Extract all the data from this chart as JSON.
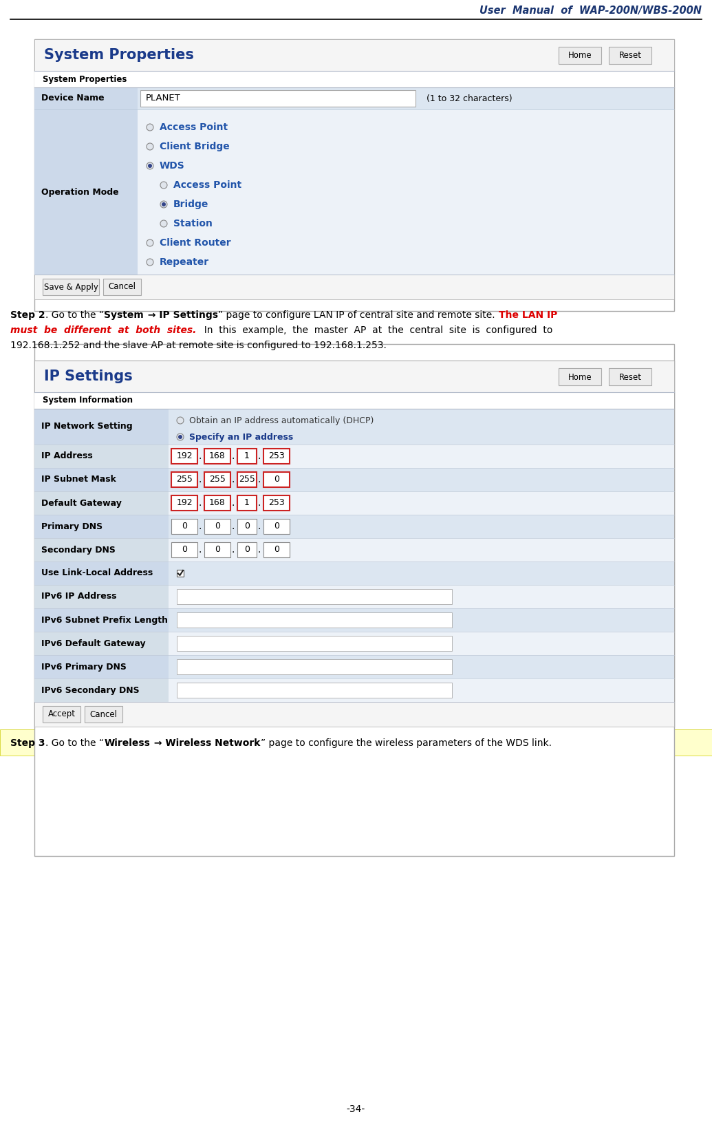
{
  "page_title": "User  Manual  of  WAP-200N/WBS-200N",
  "page_number": "-34-",
  "title_color": "#1a3a6b",
  "sp_title": "System Properties",
  "sp_subtitle": "System Properties",
  "sp_row1_label": "Device Name",
  "sp_row1_value": "PLANET",
  "sp_row1_hint": "(1 to 32 characters)",
  "sp_row2_label": "Operation Mode",
  "sp_modes": [
    {
      "label": "Access Point",
      "selected": false,
      "indent": 0,
      "color": "#2255aa"
    },
    {
      "label": "Client Bridge",
      "selected": false,
      "indent": 0,
      "color": "#2255aa"
    },
    {
      "label": "WDS",
      "selected": true,
      "indent": 0,
      "color": "#2255aa"
    },
    {
      "label": "Access Point",
      "selected": false,
      "indent": 1,
      "color": "#2255aa"
    },
    {
      "label": "Bridge",
      "selected": true,
      "indent": 1,
      "color": "#2255aa"
    },
    {
      "label": "Station",
      "selected": false,
      "indent": 1,
      "color": "#2255aa"
    },
    {
      "label": "Client Router",
      "selected": false,
      "indent": 0,
      "color": "#2255aa"
    },
    {
      "label": "Repeater",
      "selected": false,
      "indent": 0,
      "color": "#2255aa"
    }
  ],
  "ip_title": "IP Settings",
  "ip_subtitle": "System Information",
  "ip_rows": [
    {
      "label": "IP Network Setting",
      "type": "radio2",
      "options": [
        "Obtain an IP address automatically (DHCP)",
        "Specify an IP address"
      ],
      "selected": 1
    },
    {
      "label": "IP Address",
      "type": "ip_input",
      "values": [
        "192",
        "168",
        "1",
        "253"
      ],
      "highlight": true
    },
    {
      "label": "IP Subnet Mask",
      "type": "ip_input",
      "values": [
        "255",
        "255",
        "255",
        "0"
      ],
      "highlight": true
    },
    {
      "label": "Default Gateway",
      "type": "ip_input",
      "values": [
        "192",
        "168",
        "1",
        "253"
      ],
      "highlight": true
    },
    {
      "label": "Primary DNS",
      "type": "ip_input",
      "values": [
        "0",
        "0",
        "0",
        "0"
      ],
      "highlight": false
    },
    {
      "label": "Secondary DNS",
      "type": "ip_input",
      "values": [
        "0",
        "0",
        "0",
        "0"
      ],
      "highlight": false
    },
    {
      "label": "Use Link-Local Address",
      "type": "checkbox",
      "checked": true
    },
    {
      "label": "IPv6 IP Address",
      "type": "text_input",
      "value": ""
    },
    {
      "label": "IPv6 Subnet Prefix Length",
      "type": "text_input",
      "value": ""
    },
    {
      "label": "IPv6 Default Gateway",
      "type": "text_input",
      "value": ""
    },
    {
      "label": "IPv6 Primary DNS",
      "type": "text_input",
      "value": ""
    },
    {
      "label": "IPv6 Secondary DNS",
      "type": "text_input",
      "value": ""
    }
  ],
  "step2_line1_normal": ". Go to the “System → IP Settings” page to configure LAN IP of central site and remote site. ",
  "step2_line1_red": "The LAN IP",
  "step2_line2_red_bold_italic": "must  be  different  at  both  sites.",
  "step2_line2_normal": "  In  this  example,  the  master  AP  at  the  central  site  is  configured  to",
  "step2_line3": "192.168.1.252 and the slave AP at remote site is configured to 192.168.1.253.",
  "step3_line": ". Go to the “Wireless → Wireless Network” page to configure the wireless parameters of the WDS link.",
  "label_bg": "#ccd9ea",
  "row_odd_bg": "#dce6f1",
  "row_even_bg": "#edf2f8",
  "panel_border": "#aaaaaa",
  "header_sep": "#b0b8c8",
  "step2_bg": "#e8f0ff",
  "step3_bg": "#ffffc0"
}
